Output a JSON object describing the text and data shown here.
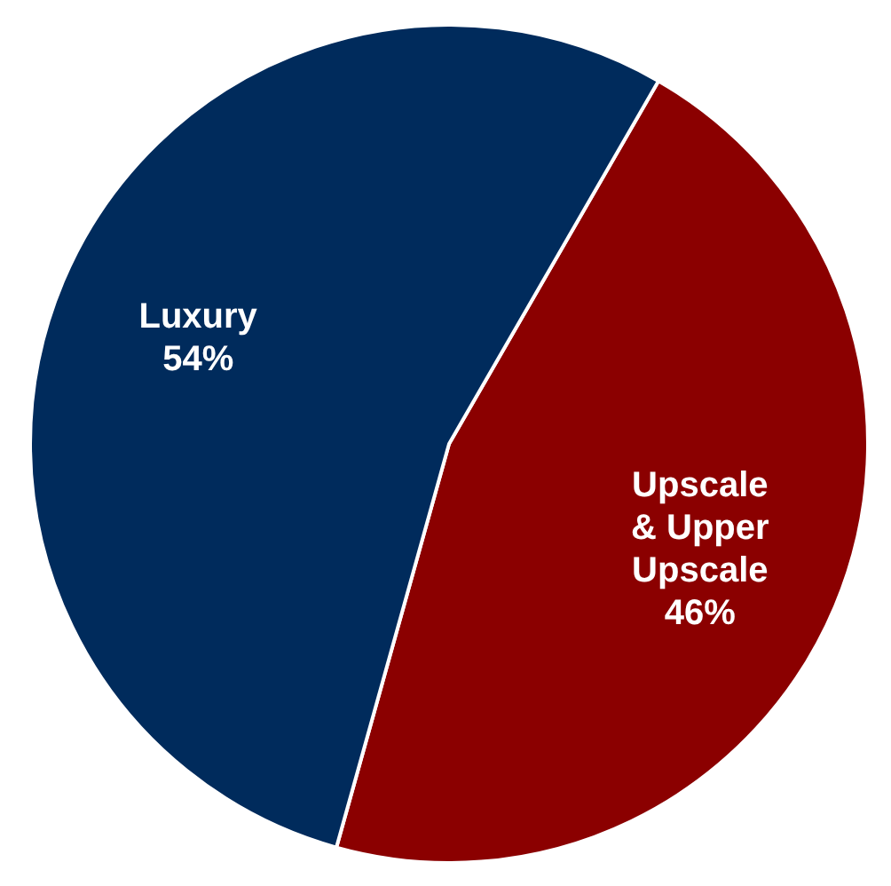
{
  "chart_data": {
    "type": "pie",
    "categories": [
      "Upscale & Upper Upscale",
      "Luxury"
    ],
    "values": [
      46,
      54
    ],
    "colors": [
      "#8b0000",
      "#002b5c"
    ],
    "value_labels": [
      "46%",
      "54%"
    ]
  }
}
